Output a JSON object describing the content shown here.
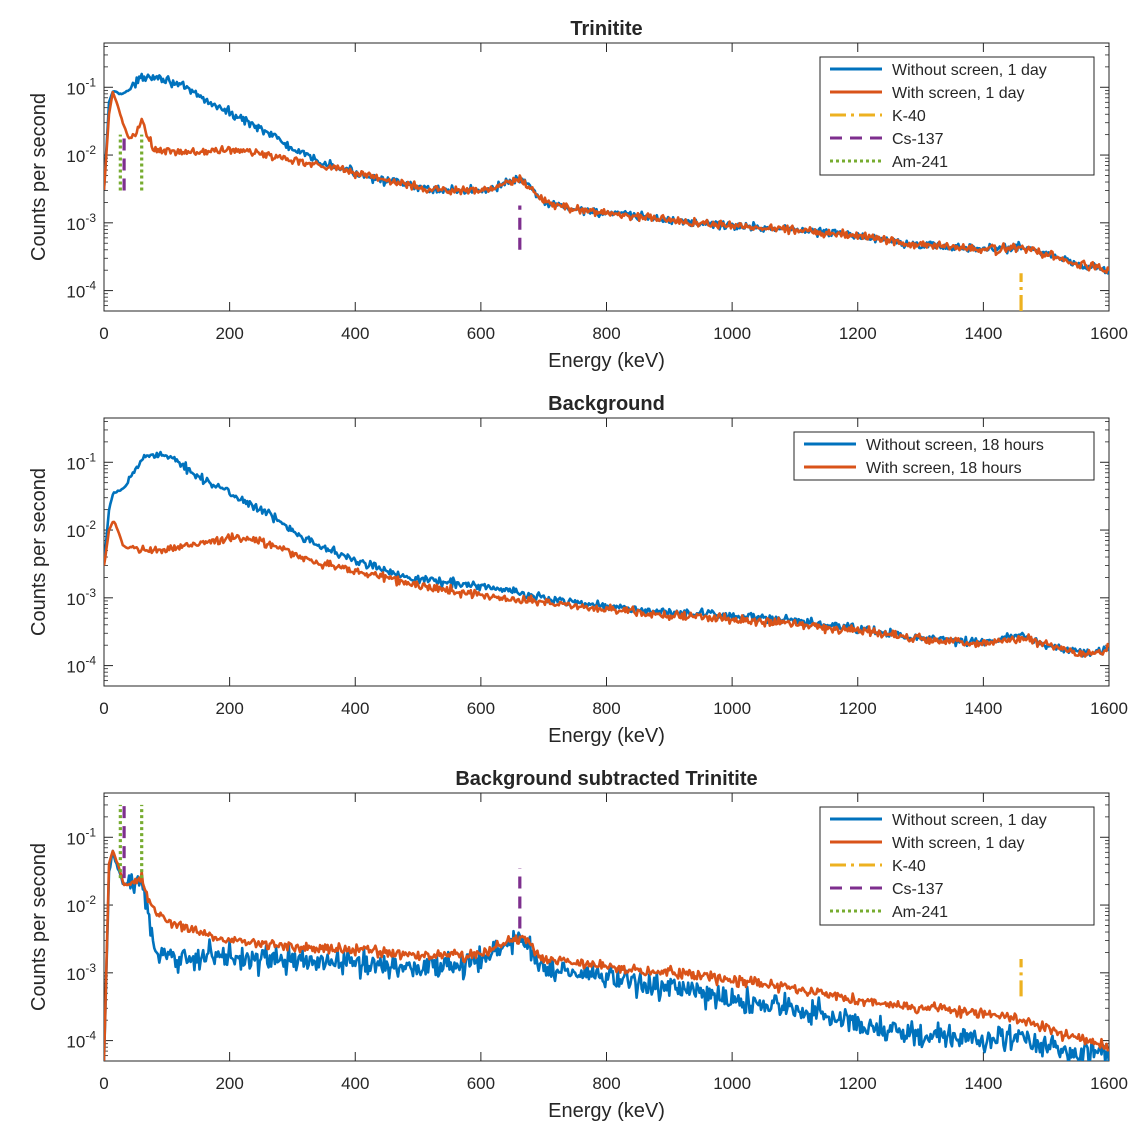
{
  "chart_data": [
    {
      "type": "line",
      "title": "Trinitite",
      "xlabel": "Energy (keV)",
      "ylabel": "Counts per second",
      "xlim": [
        0,
        1600
      ],
      "ylim": [
        5e-05,
        0.45
      ],
      "yscale": "log",
      "grid": false,
      "legend_position": "top-right",
      "xticks": [
        "0",
        "200",
        "400",
        "600",
        "800",
        "1000",
        "1200",
        "1400",
        "1600"
      ],
      "yticks": [
        {
          "value": 0.1,
          "base": "10",
          "exp": "-1"
        },
        {
          "value": 0.01,
          "base": "10",
          "exp": "-2"
        },
        {
          "value": 0.001,
          "base": "10",
          "exp": "-3"
        },
        {
          "value": 0.0001,
          "base": "10",
          "exp": "-4"
        }
      ],
      "series": [
        {
          "name": "Without screen, 1 day",
          "color": "#0072BD",
          "x": [
            0,
            8,
            15,
            25,
            35,
            45,
            60,
            75,
            90,
            110,
            130,
            150,
            175,
            200,
            225,
            250,
            275,
            300,
            350,
            400,
            450,
            500,
            550,
            600,
            630,
            650,
            662,
            675,
            700,
            750,
            800,
            900,
            1000,
            1100,
            1200,
            1300,
            1400,
            1460,
            1500,
            1550,
            1600
          ],
          "y": [
            0.003,
            0.06,
            0.09,
            0.08,
            0.085,
            0.1,
            0.14,
            0.15,
            0.14,
            0.12,
            0.095,
            0.075,
            0.055,
            0.042,
            0.032,
            0.025,
            0.018,
            0.012,
            0.0075,
            0.0055,
            0.0042,
            0.0033,
            0.003,
            0.003,
            0.0035,
            0.0042,
            0.0045,
            0.0035,
            0.002,
            0.0016,
            0.0014,
            0.0011,
            0.0009,
            0.0008,
            0.00065,
            0.00048,
            0.0004,
            0.00045,
            0.00035,
            0.00025,
            0.0002
          ],
          "noise": 0.12
        },
        {
          "name": "With screen, 1 day",
          "color": "#D95319",
          "x": [
            0,
            8,
            14,
            20,
            30,
            40,
            50,
            60,
            70,
            80,
            100,
            150,
            200,
            250,
            300,
            350,
            400,
            450,
            500,
            550,
            600,
            630,
            650,
            662,
            675,
            700,
            750,
            800,
            900,
            1000,
            1100,
            1200,
            1300,
            1400,
            1460,
            1500,
            1550,
            1600
          ],
          "y": [
            0.003,
            0.04,
            0.085,
            0.06,
            0.03,
            0.017,
            0.02,
            0.033,
            0.018,
            0.012,
            0.011,
            0.011,
            0.012,
            0.0105,
            0.0085,
            0.007,
            0.0055,
            0.0043,
            0.0033,
            0.003,
            0.003,
            0.0034,
            0.0041,
            0.0044,
            0.0035,
            0.002,
            0.0016,
            0.0014,
            0.0011,
            0.0009,
            0.0008,
            0.00065,
            0.00048,
            0.0004,
            0.00043,
            0.00034,
            0.00025,
            0.0002
          ],
          "noise": 0.12
        }
      ],
      "markers": [
        {
          "name": "K-40",
          "color": "#EDB120",
          "style": "dashdot",
          "segments": [
            {
              "x": 1460,
              "y1": 5e-05,
              "y2": 0.00018
            }
          ]
        },
        {
          "name": "Cs-137",
          "color": "#7E2F8E",
          "style": "dash",
          "segments": [
            {
              "x": 32,
              "y1": 0.003,
              "y2": 0.02
            },
            {
              "x": 662,
              "y1": 0.0004,
              "y2": 0.0018
            }
          ]
        },
        {
          "name": "Am-241",
          "color": "#77AC30",
          "style": "dot",
          "segments": [
            {
              "x": 26,
              "y1": 0.003,
              "y2": 0.02
            },
            {
              "x": 60,
              "y1": 0.003,
              "y2": 0.02
            }
          ]
        }
      ]
    },
    {
      "type": "line",
      "title": "Background",
      "xlabel": "Energy (keV)",
      "ylabel": "Counts per second",
      "xlim": [
        0,
        1600
      ],
      "ylim": [
        5e-05,
        0.45
      ],
      "yscale": "log",
      "grid": false,
      "legend_position": "top-right",
      "xticks": [
        "0",
        "200",
        "400",
        "600",
        "800",
        "1000",
        "1200",
        "1400",
        "1600"
      ],
      "yticks": [
        {
          "value": 0.1,
          "base": "10",
          "exp": "-1"
        },
        {
          "value": 0.01,
          "base": "10",
          "exp": "-2"
        },
        {
          "value": 0.001,
          "base": "10",
          "exp": "-3"
        },
        {
          "value": 0.0001,
          "base": "10",
          "exp": "-4"
        }
      ],
      "series": [
        {
          "name": "Without screen, 18 hours",
          "color": "#0072BD",
          "x": [
            0,
            8,
            15,
            25,
            35,
            45,
            60,
            80,
            100,
            130,
            160,
            200,
            250,
            300,
            350,
            400,
            450,
            500,
            600,
            700,
            800,
            900,
            1000,
            1100,
            1200,
            1300,
            1400,
            1460,
            1500,
            1560,
            1600
          ],
          "y": [
            0.003,
            0.02,
            0.035,
            0.038,
            0.045,
            0.065,
            0.11,
            0.14,
            0.12,
            0.085,
            0.055,
            0.035,
            0.02,
            0.01,
            0.0055,
            0.0035,
            0.0025,
            0.0019,
            0.0015,
            0.001,
            0.00075,
            0.0006,
            0.00055,
            0.00045,
            0.00035,
            0.00025,
            0.00022,
            0.00028,
            0.0002,
            0.00015,
            0.00017
          ],
          "noise": 0.12
        },
        {
          "name": "With screen, 18 hours",
          "color": "#D95319",
          "x": [
            0,
            8,
            15,
            22,
            30,
            45,
            60,
            100,
            150,
            200,
            250,
            300,
            350,
            400,
            450,
            500,
            600,
            700,
            800,
            900,
            1000,
            1100,
            1200,
            1300,
            1400,
            1460,
            1500,
            1560,
            1600
          ],
          "y": [
            0.003,
            0.01,
            0.014,
            0.01,
            0.006,
            0.005,
            0.005,
            0.005,
            0.0065,
            0.0075,
            0.007,
            0.0045,
            0.0031,
            0.0025,
            0.002,
            0.0015,
            0.0011,
            0.00085,
            0.00068,
            0.00055,
            0.00048,
            0.00042,
            0.00033,
            0.00025,
            0.00021,
            0.00026,
            0.0002,
            0.00014,
            0.00017
          ],
          "noise": 0.12
        }
      ],
      "markers": []
    },
    {
      "type": "line",
      "title": "Background subtracted Trinitite",
      "xlabel": "Energy (keV)",
      "ylabel": "Counts per second",
      "xlim": [
        0,
        1600
      ],
      "ylim": [
        5e-05,
        0.45
      ],
      "yscale": "log",
      "grid": false,
      "legend_position": "top-right",
      "xticks": [
        "0",
        "200",
        "400",
        "600",
        "800",
        "1000",
        "1200",
        "1400",
        "1600"
      ],
      "yticks": [
        {
          "value": 0.1,
          "base": "10",
          "exp": "-1"
        },
        {
          "value": 0.01,
          "base": "10",
          "exp": "-2"
        },
        {
          "value": 0.001,
          "base": "10",
          "exp": "-3"
        },
        {
          "value": 0.0001,
          "base": "10",
          "exp": "-4"
        }
      ],
      "series": [
        {
          "name": "Without screen, 1 day",
          "color": "#0072BD",
          "x": [
            0,
            8,
            14,
            22,
            32,
            45,
            60,
            70,
            80,
            100,
            150,
            200,
            250,
            300,
            400,
            500,
            600,
            630,
            650,
            662,
            675,
            700,
            800,
            900,
            1000,
            1100,
            1200,
            1300,
            1400,
            1460,
            1500,
            1560,
            1600
          ],
          "y": [
            5e-05,
            0.03,
            0.06,
            0.035,
            0.02,
            0.02,
            0.025,
            0.008,
            0.002,
            0.0015,
            0.0018,
            0.0018,
            0.0016,
            0.0015,
            0.0014,
            0.0012,
            0.0015,
            0.0022,
            0.003,
            0.0032,
            0.0025,
            0.0012,
            0.00085,
            0.0006,
            0.0004,
            0.0003,
            0.00018,
            0.00012,
            0.0001,
            0.00012,
            8e-05,
            6e-05,
            7e-05
          ],
          "noise": 0.35
        },
        {
          "name": "With screen, 1 day",
          "color": "#D95319",
          "x": [
            0,
            8,
            14,
            22,
            32,
            45,
            60,
            70,
            80,
            100,
            150,
            200,
            250,
            300,
            400,
            500,
            600,
            630,
            650,
            662,
            675,
            700,
            800,
            900,
            1000,
            1100,
            1200,
            1300,
            1400,
            1460,
            1500,
            1560,
            1600
          ],
          "y": [
            5e-05,
            0.04,
            0.065,
            0.04,
            0.02,
            0.02,
            0.025,
            0.012,
            0.008,
            0.006,
            0.004,
            0.003,
            0.0027,
            0.0025,
            0.0022,
            0.0018,
            0.0018,
            0.0025,
            0.0032,
            0.0034,
            0.0028,
            0.0016,
            0.0012,
            0.001,
            0.0008,
            0.0006,
            0.0004,
            0.0003,
            0.00025,
            0.0002,
            0.00015,
            0.0001,
            8e-05
          ],
          "noise": 0.15
        }
      ],
      "markers": [
        {
          "name": "K-40",
          "color": "#EDB120",
          "style": "dashdot",
          "segments": [
            {
              "x": 1460,
              "y1": 0.00045,
              "y2": 0.0016
            }
          ]
        },
        {
          "name": "Cs-137",
          "color": "#7E2F8E",
          "style": "dash",
          "segments": [
            {
              "x": 32,
              "y1": 0.025,
              "y2": 0.3
            },
            {
              "x": 662,
              "y1": 0.0045,
              "y2": 0.035
            }
          ]
        },
        {
          "name": "Am-241",
          "color": "#77AC30",
          "style": "dot",
          "segments": [
            {
              "x": 26,
              "y1": 0.025,
              "y2": 0.3
            },
            {
              "x": 60,
              "y1": 0.025,
              "y2": 0.3
            }
          ]
        }
      ]
    }
  ]
}
